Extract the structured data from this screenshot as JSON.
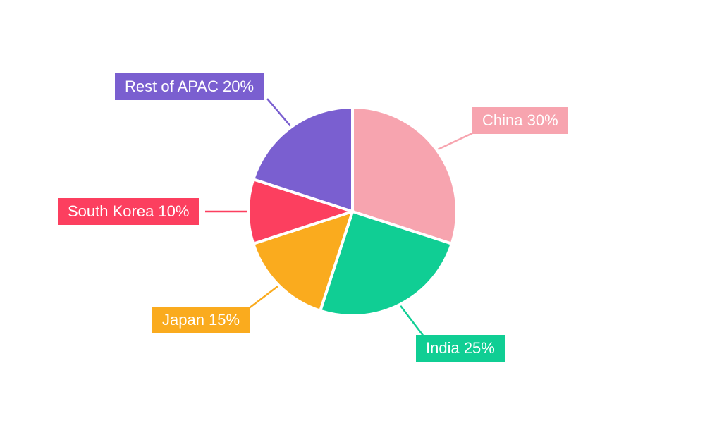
{
  "chart_data": {
    "type": "pie",
    "title": "",
    "background": "#FFFFFF",
    "start_angle_deg": 0,
    "direction": "clockwise",
    "legend_position": "callout-labels",
    "slices": [
      {
        "label": "China",
        "value": 30,
        "percent_text": "30%",
        "color": "#F7A4AF",
        "label_text": "China 30%"
      },
      {
        "label": "India",
        "value": 25,
        "percent_text": "25%",
        "color": "#10CE94",
        "label_text": "India 25%"
      },
      {
        "label": "Japan",
        "value": 15,
        "percent_text": "15%",
        "color": "#FAAB1E",
        "label_text": "Japan 15%"
      },
      {
        "label": "South Korea",
        "value": 10,
        "percent_text": "10%",
        "color": "#FC3F5F",
        "label_text": "South Korea 10%"
      },
      {
        "label": "Rest of APAC",
        "value": 20,
        "percent_text": "20%",
        "color": "#7A5FD0",
        "label_text": "Rest of APAC 20%"
      }
    ]
  }
}
